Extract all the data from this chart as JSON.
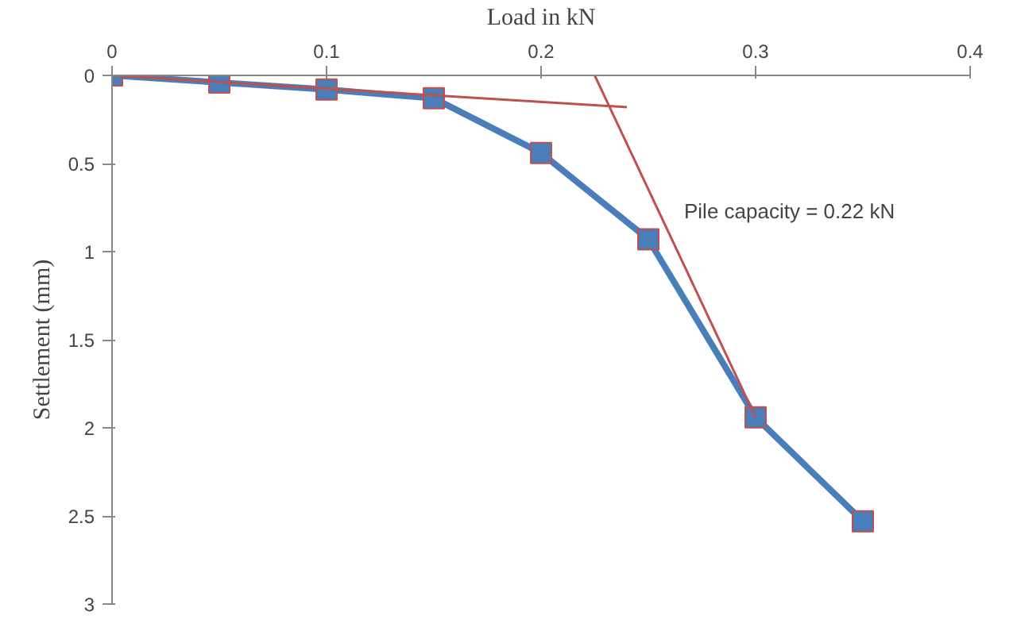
{
  "chart_data": {
    "type": "line",
    "xlabel": "Load in kN",
    "ylabel": "Settlement (mm)",
    "xlim": [
      0,
      0.4
    ],
    "xticks": [
      0,
      0.1,
      0.2,
      0.3,
      0.4
    ],
    "ylim": [
      3,
      0
    ],
    "yticks": [
      0,
      0.5,
      1,
      1.5,
      2,
      2.5,
      3
    ],
    "grid": false,
    "annotations": [
      "Pile capacity = 0.22 kN"
    ],
    "series": [
      {
        "color": "#4a7ebb",
        "marker": "square",
        "x": [
          0,
          0.05,
          0.1,
          0.15,
          0.2,
          0.25,
          0.3,
          0.35
        ],
        "values": [
          0,
          0.04,
          0.08,
          0.13,
          0.44,
          0.93,
          1.94,
          2.53
        ]
      },
      {
        "color": "#c0504d",
        "marker": "none",
        "x": [
          0,
          0.24
        ],
        "values": [
          0,
          0.18
        ]
      },
      {
        "color": "#c0504d",
        "marker": "none",
        "x": [
          0.225,
          0.3
        ],
        "values": [
          0,
          1.94
        ]
      }
    ]
  }
}
